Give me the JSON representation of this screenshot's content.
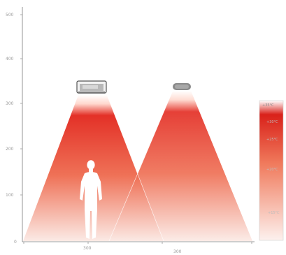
{
  "chart": {
    "y_ticks": [
      "500",
      "400",
      "300",
      "200",
      "100",
      "0"
    ],
    "x_ticks": [
      "300",
      "300"
    ]
  },
  "legend": {
    "labels": [
      "+35°C",
      "+30°C",
      "+25°C",
      "+20°C",
      "+15°C"
    ]
  },
  "colors": {
    "heat_hot": "#e2261c",
    "heat_cool": "#fbe9e4",
    "axis": "#7a7a7a",
    "figure": "#ffffff",
    "heater_body": "#8a8a8a"
  },
  "icons": {
    "heater_left": "heater-panel-icon",
    "heater_right": "heater-lamp-icon",
    "person": "person-silhouette-icon"
  }
}
